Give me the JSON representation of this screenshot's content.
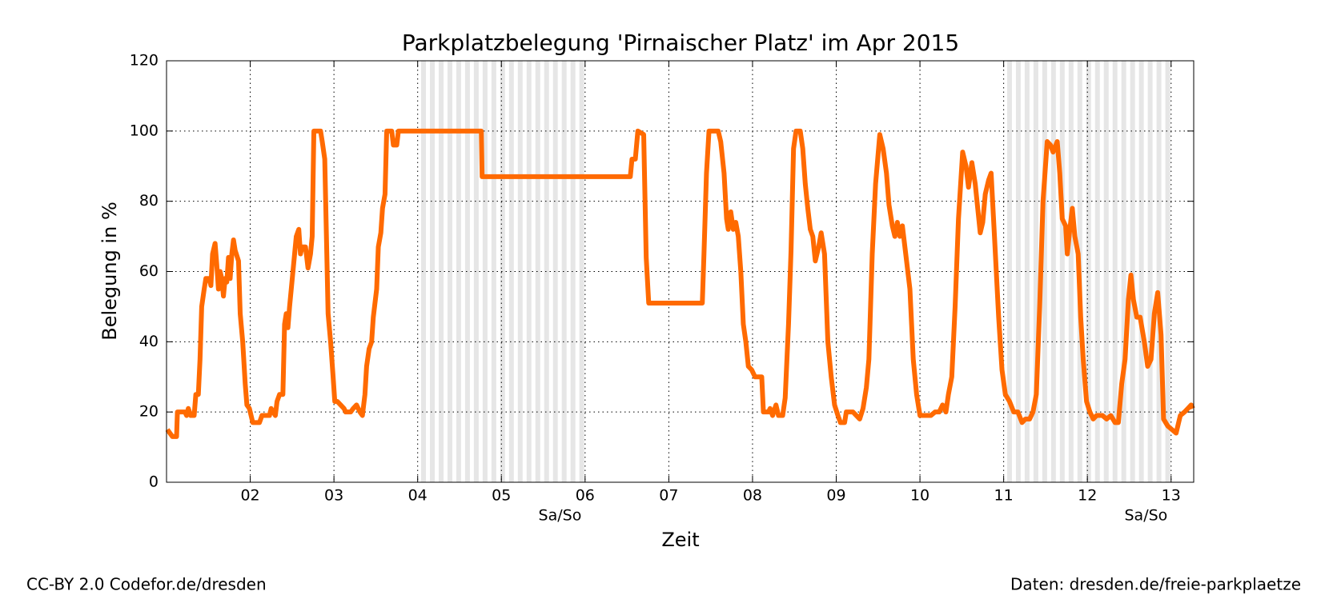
{
  "chart_data": {
    "type": "line",
    "title": "Parkplatzbelegung 'Pirnaischer Platz' im Apr 2015",
    "x_label": "Zeit",
    "y_label": "Belegung in %",
    "color": "#ff6a00",
    "grid": true,
    "xlim": [
      1,
      13.27
    ],
    "ylim": [
      0,
      120
    ],
    "xticks": [
      {
        "value": 2,
        "label": "02"
      },
      {
        "value": 3,
        "label": "03"
      },
      {
        "value": 4,
        "label": "04"
      },
      {
        "value": 5,
        "label": "05"
      },
      {
        "value": 6,
        "label": "06"
      },
      {
        "value": 7,
        "label": "07"
      },
      {
        "value": 8,
        "label": "08"
      },
      {
        "value": 9,
        "label": "09"
      },
      {
        "value": 10,
        "label": "10"
      },
      {
        "value": 11,
        "label": "11"
      },
      {
        "value": 12,
        "label": "12"
      },
      {
        "value": 13,
        "label": "13"
      }
    ],
    "yticks": [
      0,
      20,
      40,
      60,
      80,
      100,
      120
    ],
    "weekends": [
      [
        4,
        6
      ],
      [
        11,
        13
      ]
    ],
    "annotations": [
      {
        "text": "Sa/So",
        "x": 5.7
      },
      {
        "text": "Sa/So",
        "x": 12.7
      }
    ],
    "credits": {
      "left": "CC-BY 2.0 Codefor.de/dresden",
      "right": "Daten: dresden.de/freie-parkplaetze"
    },
    "x": [
      1.01,
      1.07,
      1.12,
      1.13,
      1.22,
      1.24,
      1.26,
      1.29,
      1.33,
      1.35,
      1.38,
      1.4,
      1.42,
      1.45,
      1.47,
      1.51,
      1.53,
      1.55,
      1.58,
      1.6,
      1.62,
      1.64,
      1.66,
      1.68,
      1.7,
      1.72,
      1.74,
      1.76,
      1.78,
      1.8,
      1.82,
      1.86,
      1.88,
      1.91,
      1.94,
      1.96,
      1.99,
      2.01,
      2.03,
      2.11,
      2.14,
      2.23,
      2.25,
      2.3,
      2.32,
      2.35,
      2.39,
      2.41,
      2.43,
      2.45,
      2.47,
      2.51,
      2.53,
      2.55,
      2.58,
      2.6,
      2.62,
      2.66,
      2.69,
      2.72,
      2.74,
      2.76,
      2.84,
      2.86,
      2.89,
      2.91,
      2.93,
      2.96,
      2.99,
      3.01,
      3.04,
      3.08,
      3.12,
      3.14,
      3.2,
      3.23,
      3.27,
      3.31,
      3.34,
      3.37,
      3.39,
      3.42,
      3.45,
      3.47,
      3.51,
      3.53,
      3.56,
      3.58,
      3.61,
      3.63,
      3.69,
      3.71,
      3.75,
      3.77,
      4.76,
      4.77,
      6.54,
      6.56,
      6.6,
      6.63,
      6.7,
      6.73,
      6.76,
      7.4,
      7.42,
      7.45,
      7.48,
      7.59,
      7.62,
      7.66,
      7.69,
      7.71,
      7.74,
      7.77,
      7.8,
      7.83,
      7.86,
      7.89,
      7.92,
      7.95,
      7.99,
      8.03,
      8.11,
      8.13,
      8.19,
      8.21,
      8.24,
      8.28,
      8.31,
      8.36,
      8.39,
      8.43,
      8.46,
      8.49,
      8.52,
      8.57,
      8.6,
      8.63,
      8.66,
      8.69,
      8.72,
      8.75,
      8.79,
      8.82,
      8.86,
      8.9,
      8.94,
      8.98,
      9.02,
      9.05,
      9.1,
      9.12,
      9.2,
      9.24,
      9.28,
      9.32,
      9.36,
      9.39,
      9.43,
      9.47,
      9.52,
      9.56,
      9.6,
      9.63,
      9.67,
      9.7,
      9.73,
      9.76,
      9.79,
      9.83,
      9.88,
      9.92,
      9.96,
      10.0,
      10.13,
      10.18,
      10.23,
      10.27,
      10.31,
      10.34,
      10.38,
      10.42,
      10.46,
      10.51,
      10.55,
      10.58,
      10.62,
      10.66,
      10.69,
      10.72,
      10.75,
      10.78,
      10.82,
      10.85,
      10.89,
      10.94,
      10.98,
      11.02,
      11.07,
      11.12,
      11.17,
      11.22,
      11.26,
      11.31,
      11.35,
      11.39,
      11.43,
      11.47,
      11.52,
      11.56,
      11.59,
      11.64,
      11.67,
      11.7,
      11.74,
      11.76,
      11.79,
      11.82,
      11.85,
      11.89,
      11.92,
      11.95,
      11.99,
      12.03,
      12.07,
      12.11,
      12.18,
      12.23,
      12.28,
      12.33,
      12.37,
      12.41,
      12.45,
      12.49,
      12.52,
      12.55,
      12.59,
      12.63,
      12.68,
      12.72,
      12.76,
      12.8,
      12.84,
      12.88,
      12.91,
      12.96,
      13.01,
      13.06,
      13.11,
      13.16,
      13.2,
      13.24,
      13.26
    ],
    "values": [
      15,
      13,
      13,
      20,
      20,
      19,
      21,
      19,
      19,
      25,
      25,
      35,
      50,
      55,
      58,
      58,
      56,
      65,
      68,
      62,
      55,
      60,
      58,
      53,
      58,
      57,
      64,
      58,
      65,
      69,
      66,
      63,
      48,
      40,
      28,
      22,
      21,
      19,
      17,
      17,
      19,
      19,
      21,
      19,
      23,
      25,
      25,
      45,
      48,
      44,
      50,
      60,
      65,
      70,
      72,
      65,
      67,
      67,
      61,
      65,
      70,
      100,
      100,
      97,
      92,
      70,
      48,
      40,
      30,
      23,
      23,
      22,
      21,
      20,
      20,
      21,
      22,
      20,
      19,
      25,
      33,
      38,
      40,
      47,
      55,
      67,
      71,
      78,
      82,
      100,
      100,
      96,
      96,
      100,
      100,
      87,
      87,
      92,
      92,
      100,
      99,
      64,
      51,
      51,
      65,
      88,
      100,
      100,
      97,
      88,
      75,
      72,
      77,
      72,
      74,
      70,
      60,
      45,
      40,
      33,
      32,
      30,
      30,
      20,
      20,
      21,
      19,
      22,
      19,
      19,
      24,
      45,
      66,
      95,
      100,
      100,
      95,
      85,
      78,
      72,
      70,
      63,
      67,
      71,
      65,
      40,
      30,
      22,
      19,
      17,
      17,
      20,
      20,
      19,
      18,
      21,
      27,
      35,
      65,
      85,
      99,
      95,
      88,
      79,
      73,
      70,
      74,
      70,
      73,
      65,
      55,
      35,
      25,
      19,
      19,
      20,
      20,
      22,
      20,
      25,
      30,
      50,
      75,
      94,
      90,
      84,
      91,
      85,
      78,
      71,
      74,
      82,
      86,
      88,
      70,
      47,
      32,
      25,
      23,
      20,
      20,
      17,
      18,
      18,
      20,
      25,
      50,
      80,
      97,
      96,
      94,
      97,
      88,
      75,
      73,
      65,
      72,
      78,
      70,
      65,
      47,
      35,
      23,
      20,
      18,
      19,
      19,
      18,
      19,
      17,
      17,
      28,
      35,
      52,
      59,
      52,
      47,
      47,
      40,
      33,
      35,
      48,
      54,
      42,
      18,
      16,
      15,
      14,
      19,
      20,
      21,
      22,
      21
    ]
  }
}
